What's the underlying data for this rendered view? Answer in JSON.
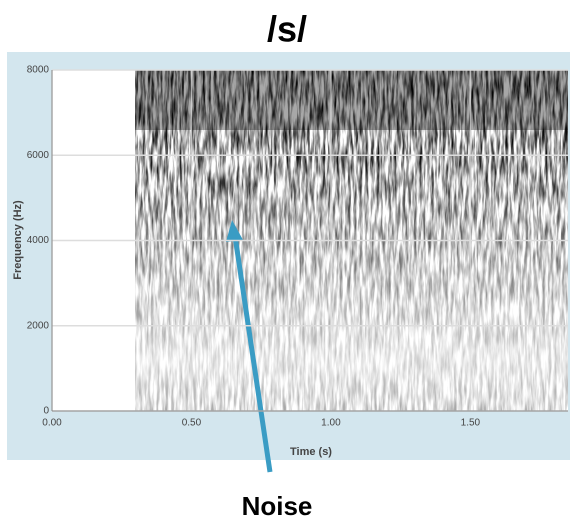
{
  "chart_data": {
    "type": "spectrogram",
    "title": "/s/",
    "xlabel": "Time (s)",
    "ylabel": "Frequency (Hz)",
    "xlim": [
      0,
      1.85
    ],
    "ylim": [
      0,
      8000
    ],
    "xticks": [
      {
        "value": 0,
        "label": "0.00"
      },
      {
        "value": 0.5,
        "label": "0.50"
      },
      {
        "value": 1,
        "label": "1.00"
      },
      {
        "value": 1.5,
        "label": "1.50"
      }
    ],
    "yticks": [
      0,
      2000,
      4000,
      6000,
      8000
    ],
    "grid": true,
    "annotation": "Noise"
  }
}
